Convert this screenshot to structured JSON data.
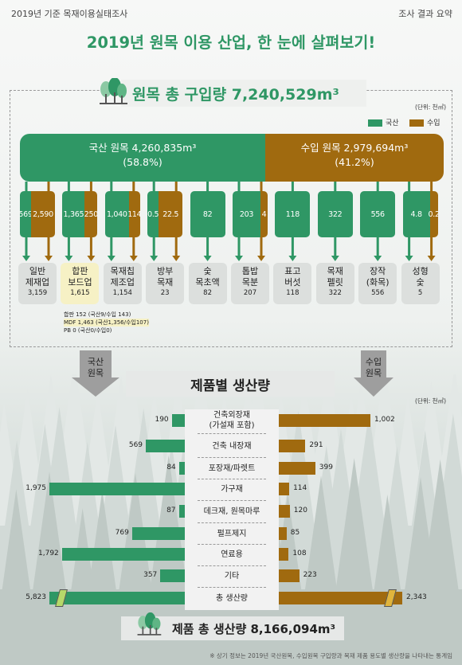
{
  "header": {
    "left": "2019년 기준 목재이용실태조사",
    "right": "조사 결과 요약"
  },
  "title": "2019년 원목 이용 산업, 한 눈에 살펴보기!",
  "purchase": {
    "title": "원목 총 구입량 7,240,529m³",
    "unit": "(단위: 천㎥)"
  },
  "legend": {
    "domestic": "국산",
    "imported": "수입"
  },
  "colors": {
    "domestic": "#2f9765",
    "imported": "#a06a0f"
  },
  "split": {
    "domestic": {
      "label": "국산 원목 4,260,835m³",
      "pct": "(58.8%)"
    },
    "imported": {
      "label": "수입 원목 2,979,694m³",
      "pct": "(41.2%)"
    }
  },
  "industries": [
    {
      "l1": "일반",
      "l2": "제재업",
      "total": "3,159",
      "dom": "569",
      "imp": "2,590",
      "split": "both"
    },
    {
      "l1": "합판",
      "l2": "보드업",
      "total": "1,615",
      "dom": "1,365",
      "imp": "250",
      "split": "both",
      "highlight": true
    },
    {
      "l1": "목재칩",
      "l2": "제조업",
      "total": "1,154",
      "dom": "1,040",
      "imp": "114",
      "split": "both"
    },
    {
      "l1": "방부",
      "l2": "목재",
      "total": "23",
      "dom": "0.5",
      "imp": "22.5",
      "split": "both"
    },
    {
      "l1": "숯",
      "l2": "목초액",
      "total": "82",
      "dom": "82",
      "imp": "",
      "split": "dom"
    },
    {
      "l1": "톱밥",
      "l2": "목분",
      "total": "207",
      "dom": "203",
      "imp": "4",
      "split": "both"
    },
    {
      "l1": "표고",
      "l2": "버섯",
      "total": "118",
      "dom": "118",
      "imp": "",
      "split": "dom"
    },
    {
      "l1": "목재",
      "l2": "펠릿",
      "total": "322",
      "dom": "322",
      "imp": "",
      "split": "dom"
    },
    {
      "l1": "장작",
      "l2": "(화목)",
      "total": "556",
      "dom": "556",
      "imp": "",
      "split": "dom"
    },
    {
      "l1": "성형",
      "l2": "숯",
      "total": "5",
      "dom": "4.8",
      "imp": "0.2",
      "split": "both"
    }
  ],
  "notes": [
    "합판 152 (국산9/수입 143)",
    "MDF 1,463 (국산1,356/수입107)",
    "PB 0 (국산0/수입0)"
  ],
  "side_labels": {
    "domestic": [
      "국산",
      "원목"
    ],
    "imported": [
      "수입",
      "원목"
    ]
  },
  "production": {
    "title": "제품별 생산량",
    "unit": "(단위: 천㎥)"
  },
  "chart_data": {
    "type": "bar",
    "categories": [
      "건축외장재 (가설재 포함)",
      "건축 내장재",
      "포장재/파렛트",
      "가구재",
      "데크재, 원목마루",
      "펄프제지",
      "연료용",
      "기타",
      "총 생산량"
    ],
    "series": [
      {
        "name": "국산",
        "values": [
          190,
          569,
          84,
          1975,
          87,
          769,
          1792,
          357,
          5823
        ]
      },
      {
        "name": "수입",
        "values": [
          1002,
          291,
          399,
          114,
          120,
          85,
          108,
          223,
          2343
        ]
      }
    ],
    "labels_dom": [
      "190",
      "569",
      "84",
      "1,975",
      "87",
      "769",
      "1,792",
      "357",
      "5,823"
    ],
    "labels_imp": [
      "1,002",
      "291",
      "399",
      "114",
      "120",
      "85",
      "108",
      "223",
      "2,343"
    ],
    "category_lines": [
      [
        "건축외장재",
        "(가설재 포함)"
      ],
      [
        "건축 내장재"
      ],
      [
        "포장재/파렛트"
      ],
      [
        "가구재"
      ],
      [
        "데크재, 원목마루"
      ],
      [
        "펄프제지"
      ],
      [
        "연료용"
      ],
      [
        "기타"
      ],
      [
        "총 생산량"
      ]
    ],
    "axis_break_on_total": true
  },
  "total_product": "제품 총 생산량 8,166,094m³",
  "footnote": "※ 상기 정보는 2019년 국산원목, 수입원목 구입량과 목재 제품 용도별 생산량을 나타내는 통계임"
}
